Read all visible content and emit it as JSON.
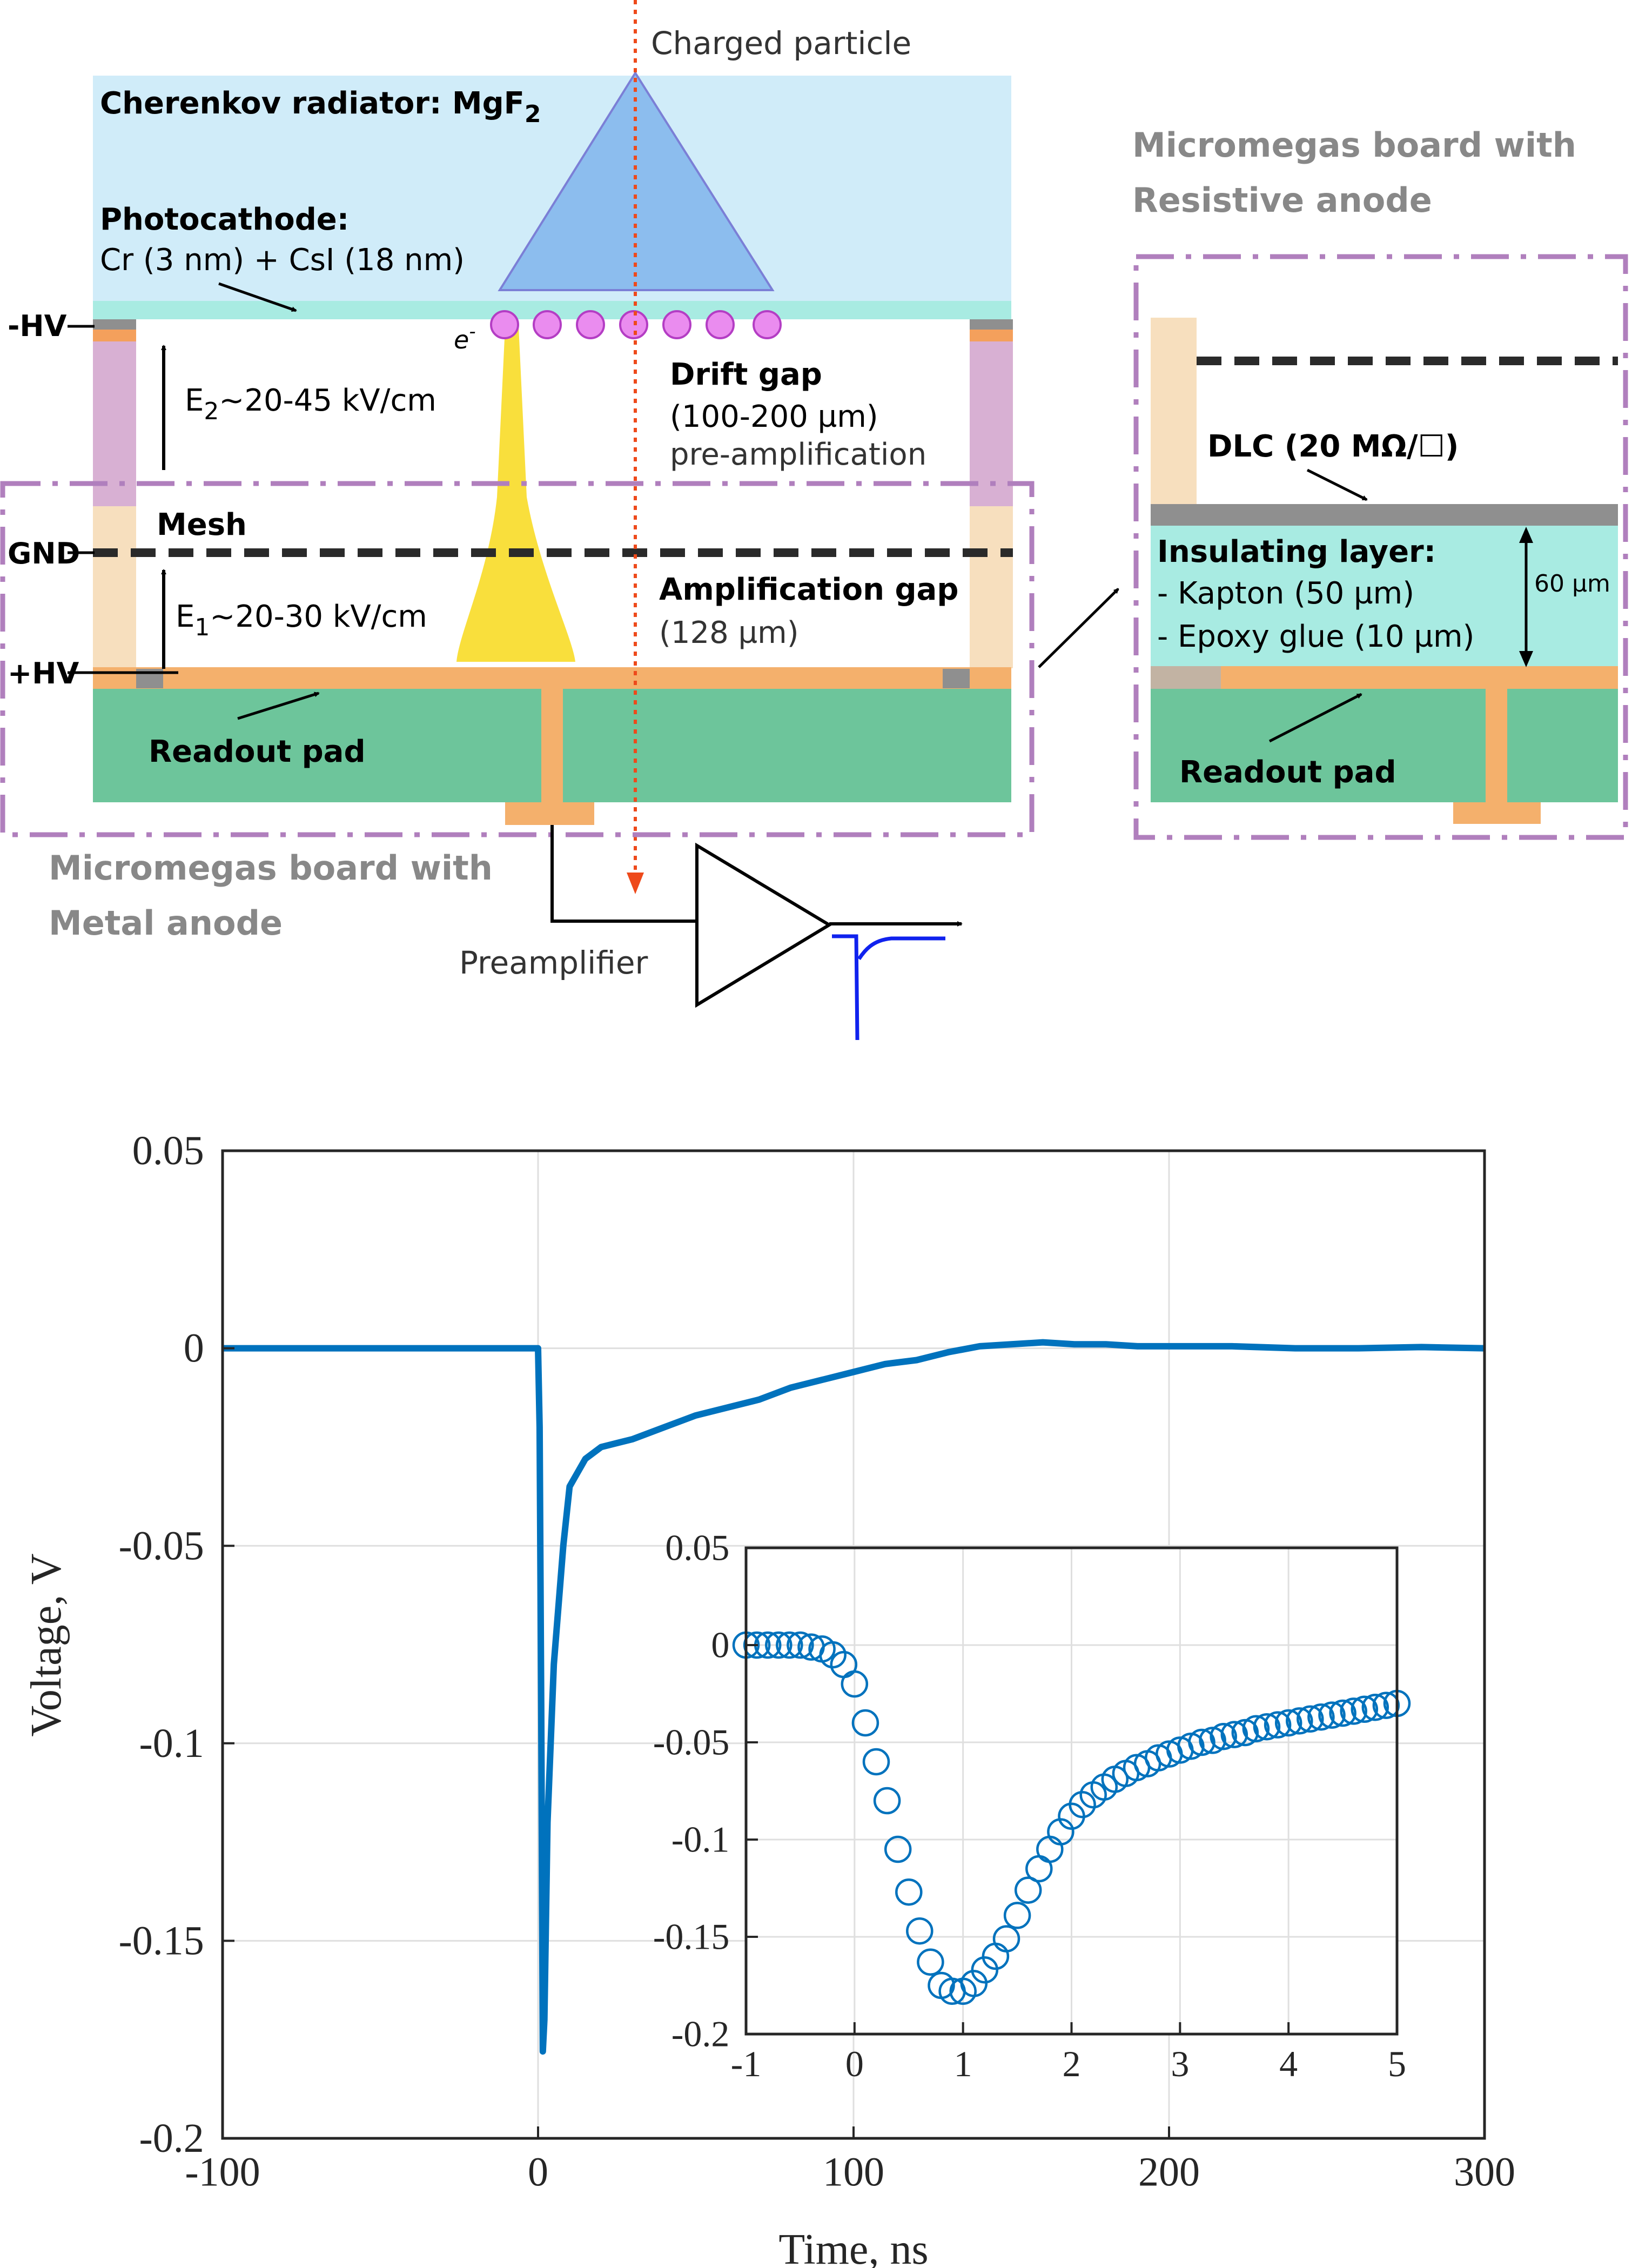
{
  "diagram": {
    "particle_label": "Charged particle",
    "radiator_title": "Cherenkov radiator: MgF",
    "radiator_sub": "2",
    "photocathode_title": "Photocathode:",
    "photocathode_detail": "Cr (3 nm) + CsI (18 nm)",
    "electron": "e",
    "electron_sup": "-",
    "minus_hv": "-HV",
    "gnd": "GND",
    "plus_hv": "+HV",
    "mesh": "Mesh",
    "e2_base": "E",
    "e2_sub": "2",
    "e2_value": "~20-45 kV/cm",
    "e1_base": "E",
    "e1_sub": "1",
    "e1_value": "~20-30 kV/cm",
    "drift_title": "Drift gap",
    "drift_size": "(100-200 µm)",
    "drift_note": "pre-amplification",
    "amp_title": "Amplification gap",
    "amp_size": "(128 µm)",
    "readout_pad": "Readout pad",
    "metal_board_line1": "Micromegas board with",
    "metal_board_line2": "Metal anode",
    "preamp": "Preamplifier",
    "resistive_board_line1": "Micromegas board with",
    "resistive_board_line2": "Resistive anode",
    "dlc": "DLC (20 MΩ/☐)",
    "insulating_title": "Insulating layer:",
    "insulating_kapton": "- Kapton (50 µm)",
    "insulating_epoxy": "- Epoxy glue (10 µm)",
    "thickness": "60 µm",
    "readout_pad_right": "Readout pad",
    "colors": {
      "radiator": "#d0ecf9",
      "cone": "#8cbdee",
      "photocathode": "#a8ebe2",
      "electron": "#ea8cef",
      "avalanche": "#f9df3c",
      "pillar_drift": "#d8b0d3",
      "pillar_amp": "#f7dfbe",
      "anode": "#f4b06c",
      "pcb": "#6dc59b",
      "board_frame": "#b07fbd",
      "signal": "#1022ee",
      "particle": "#ee4a1b"
    }
  },
  "chart_data": [
    {
      "type": "line",
      "xlabel": "Time, ns",
      "ylabel": "Voltage, V",
      "xlim": [
        -100,
        300
      ],
      "ylim": [
        -0.2,
        0.05
      ],
      "xticks": [
        "-100",
        "0",
        "100",
        "200",
        "300"
      ],
      "yticks": [
        "0.05",
        "0",
        "-0.05",
        "-0.1",
        "-0.15",
        "-0.2"
      ],
      "grid": true,
      "series": [
        {
          "x": [
            -100,
            -50,
            -10,
            0,
            0.5,
            1,
            1.5,
            2,
            3,
            5,
            8,
            10,
            15,
            20,
            30,
            40,
            50,
            60,
            70,
            80,
            90,
            100,
            110,
            120,
            130,
            140,
            150,
            160,
            170,
            180,
            190,
            200,
            220,
            240,
            260,
            280,
            300
          ],
          "y": [
            0,
            0,
            0,
            0,
            -0.02,
            -0.09,
            -0.178,
            -0.17,
            -0.12,
            -0.08,
            -0.05,
            -0.035,
            -0.028,
            -0.025,
            -0.023,
            -0.02,
            -0.017,
            -0.015,
            -0.013,
            -0.01,
            -0.008,
            -0.006,
            -0.004,
            -0.003,
            -0.001,
            0.0005,
            0.001,
            0.0015,
            0.001,
            0.001,
            0.0005,
            0.0005,
            0.0005,
            0,
            0,
            0.0003,
            0
          ],
          "color": "#0072bd"
        }
      ]
    },
    {
      "type": "scatter",
      "xlim": [
        -1,
        5
      ],
      "ylim": [
        -0.2,
        0.05
      ],
      "xticks": [
        "-1",
        "0",
        "1",
        "2",
        "3",
        "4",
        "5"
      ],
      "yticks": [
        "0.05",
        "0",
        "-0.05",
        "-0.1",
        "-0.15",
        "-0.2"
      ],
      "grid": true,
      "series": [
        {
          "x": [
            -1,
            -0.9,
            -0.8,
            -0.7,
            -0.6,
            -0.5,
            -0.4,
            -0.3,
            -0.2,
            -0.1,
            0,
            0.1,
            0.2,
            0.3,
            0.4,
            0.5,
            0.6,
            0.7,
            0.8,
            0.9,
            1,
            1.1,
            1.2,
            1.3,
            1.4,
            1.5,
            1.6,
            1.7,
            1.8,
            1.9,
            2,
            2.1,
            2.2,
            2.3,
            2.4,
            2.5,
            2.6,
            2.7,
            2.8,
            2.9,
            3,
            3.1,
            3.2,
            3.3,
            3.4,
            3.5,
            3.6,
            3.7,
            3.8,
            3.9,
            4,
            4.1,
            4.2,
            4.3,
            4.4,
            4.5,
            4.6,
            4.7,
            4.8,
            4.9,
            5
          ],
          "y": [
            0,
            0,
            0,
            0,
            0,
            0,
            -0.001,
            -0.002,
            -0.005,
            -0.01,
            -0.02,
            -0.04,
            -0.06,
            -0.08,
            -0.105,
            -0.127,
            -0.147,
            -0.163,
            -0.175,
            -0.178,
            -0.178,
            -0.174,
            -0.167,
            -0.16,
            -0.151,
            -0.139,
            -0.126,
            -0.115,
            -0.105,
            -0.096,
            -0.088,
            -0.082,
            -0.077,
            -0.073,
            -0.069,
            -0.066,
            -0.063,
            -0.061,
            -0.058,
            -0.056,
            -0.054,
            -0.052,
            -0.05,
            -0.049,
            -0.047,
            -0.046,
            -0.045,
            -0.043,
            -0.042,
            -0.041,
            -0.04,
            -0.039,
            -0.038,
            -0.037,
            -0.036,
            -0.035,
            -0.034,
            -0.033,
            -0.032,
            -0.031,
            -0.03
          ],
          "color": "#0072bd"
        }
      ]
    }
  ]
}
